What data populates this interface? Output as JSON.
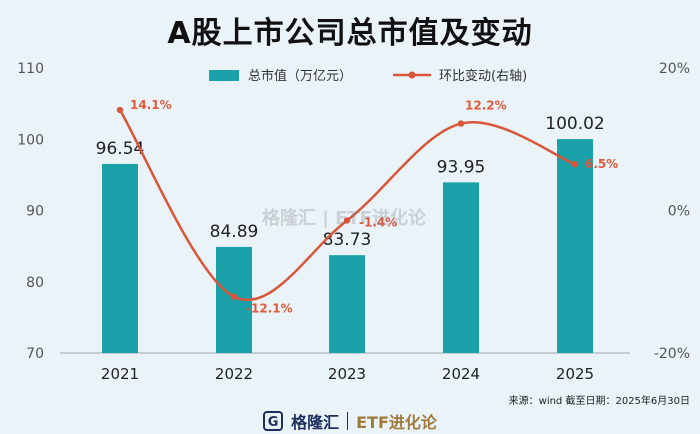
{
  "title": "A股上市公司总市值及变动",
  "source_note": "来源：wind 截至日期：2025年6月30日",
  "watermark": "格隆汇 | ETF进化论",
  "footer": {
    "brand": "格隆汇",
    "etf": "ETF进化论",
    "logo_glyph": "G"
  },
  "colors": {
    "bar": "#1aa1aa",
    "line": "#d9563a",
    "label": "#e05a3c"
  },
  "chart_data": {
    "type": "bar",
    "categories": [
      "2021",
      "2022",
      "2023",
      "2024",
      "2025"
    ],
    "series": [
      {
        "name": "总市值（万亿元）",
        "type": "bar",
        "axis": "left",
        "values": [
          96.54,
          84.89,
          83.73,
          93.95,
          100.02
        ],
        "labels": [
          "96.54",
          "84.89",
          "83.73",
          "93.95",
          "100.02"
        ]
      },
      {
        "name": "环比变动(右轴)",
        "type": "line",
        "axis": "right",
        "values": [
          14.1,
          -12.1,
          -1.4,
          12.2,
          6.5
        ],
        "labels": [
          "14.1%",
          "-12.1%",
          "-1.4%",
          "12.2%",
          "6.5%"
        ]
      }
    ],
    "ylim_left": [
      70,
      110
    ],
    "yticks_left": [
      "70",
      "80",
      "90",
      "100",
      "110"
    ],
    "ylim_right": [
      -20,
      20
    ],
    "yticks_right": [
      "-20%",
      "0%",
      "20%"
    ],
    "legend": "top-center",
    "grid": false
  }
}
